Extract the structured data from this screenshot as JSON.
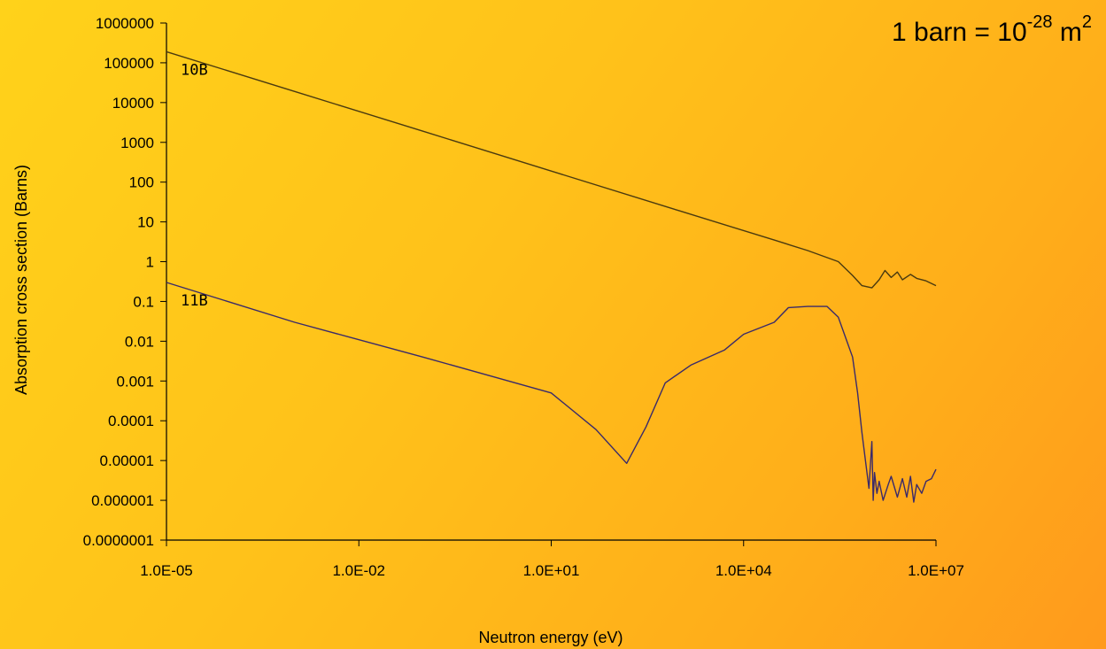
{
  "note": {
    "prefix": "1 barn = 10",
    "exponent": "-28",
    "unit": " m",
    "unit_exponent": "2"
  },
  "chart_data": {
    "type": "line",
    "xlabel": "Neutron energy (eV)",
    "ylabel": "Absorption cross section (Barns)",
    "xscale": "log",
    "yscale": "log",
    "xlim": [
      1e-05,
      10000000
    ],
    "ylim": [
      1e-07,
      1000000
    ],
    "xticks": [
      1e-05,
      0.01,
      10,
      10000,
      10000000
    ],
    "xtick_labels": [
      "1.0E-05",
      "1.0E-02",
      "1.0E+01",
      "1.0E+04",
      "1.0E+07"
    ],
    "yticks": [
      1000000,
      100000,
      10000,
      1000,
      100,
      10,
      1,
      0.1,
      0.01,
      0.001,
      0.0001,
      1e-05,
      1e-06,
      1e-07
    ],
    "ytick_labels": [
      "1000000",
      "100000",
      "10000",
      "1000",
      "100",
      "10",
      "1",
      "0.1",
      "0.01",
      "0.001",
      "0.0001",
      "0.00001",
      "0.000001",
      "0.0000001"
    ],
    "grid": false,
    "series": [
      {
        "name": "10B",
        "color": "#4a3a10",
        "x": [
          1e-05,
          0.001,
          0.1,
          10,
          1000,
          30000,
          100000,
          300000,
          500000,
          700000,
          1000000,
          1300000,
          1600000,
          2000000,
          2500000,
          3000000,
          4000000,
          5000000,
          7000000,
          10000000
        ],
        "y": [
          190000,
          19000,
          1900,
          190,
          19,
          3.5,
          1.9,
          1.0,
          0.45,
          0.25,
          0.22,
          0.35,
          0.6,
          0.4,
          0.55,
          0.35,
          0.48,
          0.38,
          0.33,
          0.25
        ]
      },
      {
        "name": "11B",
        "color": "#3a2a6a",
        "x": [
          1e-05,
          0.001,
          0.1,
          10,
          50,
          150,
          300,
          600,
          1500,
          5000,
          10000,
          30000,
          50000,
          100000,
          200000,
          300000,
          500000,
          600000,
          700000,
          900000,
          1000000,
          1050000,
          1100000,
          1200000,
          1300000,
          1500000,
          1800000,
          2000000,
          2500000,
          3000000,
          3500000,
          4000000,
          4500000,
          5000000,
          6000000,
          7000000,
          8500000,
          10000000
        ],
        "y": [
          0.3,
          0.03,
          0.004,
          0.0005,
          6e-05,
          8.5e-06,
          7e-05,
          0.0009,
          0.0025,
          0.006,
          0.015,
          0.03,
          0.07,
          0.075,
          0.075,
          0.04,
          0.004,
          0.0005,
          5e-05,
          2e-06,
          3e-05,
          1e-06,
          5e-06,
          1.5e-06,
          3e-06,
          1e-06,
          2.5e-06,
          4e-06,
          1.2e-06,
          3.5e-06,
          1.2e-06,
          4e-06,
          9e-07,
          2.5e-06,
          1.5e-06,
          3e-06,
          3.5e-06,
          6e-06
        ]
      }
    ]
  }
}
